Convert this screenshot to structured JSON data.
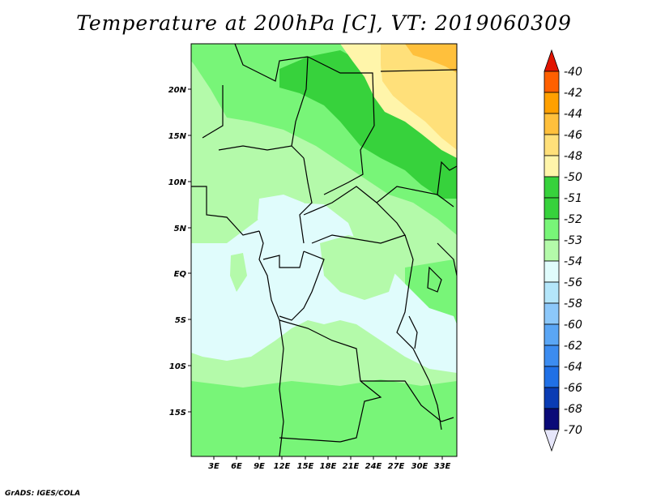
{
  "title": "Temperature at 200hPa [C], VT: 2019060309",
  "credit": "GrADS: IGES/COLA",
  "colors": {
    "c_lt70": "#e6e6fa",
    "c_m70_m68": "#0a0a78",
    "c_m68_m66": "#0a3cb4",
    "c_m66_m64": "#1456d2",
    "c_m64_m62": "#2070e6",
    "c_m62_m60": "#3c8cf0",
    "c_m60_m58": "#5aa6f5",
    "c_m58_m56": "#8cc8fa",
    "c_m56_m54": "#b4e6fa",
    "c_m54_m53": "#e0fcfc",
    "c_m53_m52": "#b4faaa",
    "c_m52_m51": "#78f578",
    "c_m51_m50": "#37d23c",
    "c_m50_m48": "#fff5aa",
    "c_m48_m46": "#ffe07a",
    "c_m46_m44": "#ffc03c",
    "c_m44_m42": "#ffa000",
    "c_m42_m40": "#ff6000",
    "c_gt40": "#e11400"
  },
  "map": {
    "lon_labels": [
      "3E",
      "6E",
      "9E",
      "12E",
      "15E",
      "18E",
      "21E",
      "24E",
      "27E",
      "30E",
      "33E"
    ],
    "lat_labels": [
      "20N",
      "15N",
      "10N",
      "5N",
      "EQ",
      "5S",
      "10S",
      "15S"
    ]
  },
  "colorbar": {
    "labels": [
      "-40",
      "-42",
      "-44",
      "-46",
      "-48",
      "-50",
      "-51",
      "-52",
      "-53",
      "-54",
      "-56",
      "-58",
      "-60",
      "-62",
      "-64",
      "-66",
      "-68",
      "-70"
    ]
  }
}
